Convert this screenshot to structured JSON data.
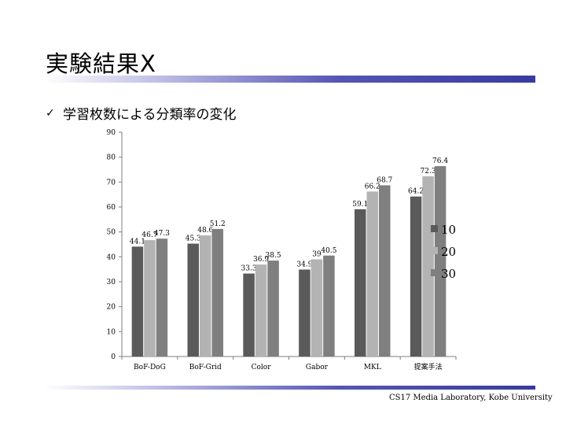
{
  "slide": {
    "title": "実験結果X",
    "bullet_mark": "✓",
    "subtitle": "学習枚数による分類率の変化",
    "footer": "CS17 Media Laboratory, Kobe University"
  },
  "colors": {
    "title_bar": "#3a3aa0",
    "series": [
      "#5a5a5a",
      "#b3b3b3",
      "#7f7f7f"
    ]
  },
  "chart_data": {
    "type": "bar",
    "title": "",
    "xlabel": "",
    "ylabel": "",
    "ylim": [
      0,
      90
    ],
    "yticks": [
      0,
      10,
      20,
      30,
      40,
      50,
      60,
      70,
      80,
      90
    ],
    "grid": false,
    "legend_position": "right",
    "categories": [
      "BoF-DoG",
      "BoF-Grid",
      "Color",
      "Gabor",
      "MKL",
      "提案手法"
    ],
    "series": [
      {
        "name": "10",
        "values": [
          44.1,
          45.3,
          33.3,
          34.9,
          59.1,
          64.2
        ]
      },
      {
        "name": "20",
        "values": [
          46.7,
          48.6,
          36.9,
          39,
          66.2,
          72.3
        ]
      },
      {
        "name": "30",
        "values": [
          47.3,
          51.2,
          38.5,
          40.5,
          68.7,
          76.4
        ]
      }
    ]
  }
}
